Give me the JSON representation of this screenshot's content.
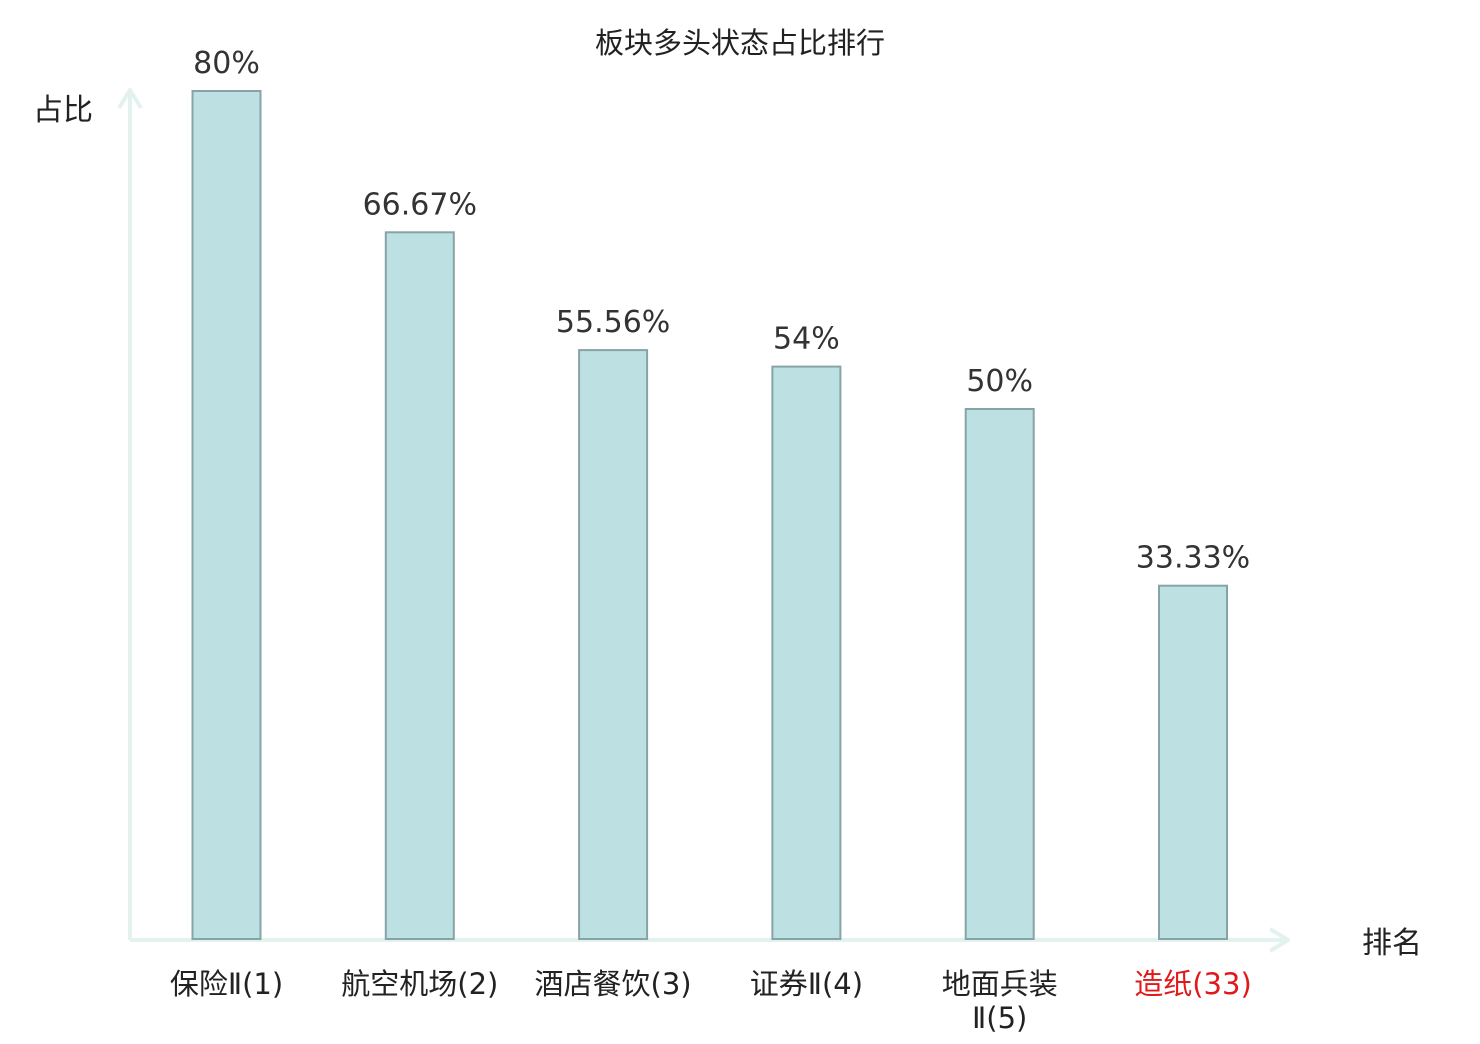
{
  "chart_data": {
    "type": "bar",
    "title": "板块多头状态占比排行",
    "xlabel": "排名",
    "ylabel": "占比",
    "categories": [
      [
        "保险Ⅱ(1)"
      ],
      [
        "航空机场(2)"
      ],
      [
        "酒店餐饮(3)"
      ],
      [
        "证券Ⅱ(4)"
      ],
      [
        "地面兵装",
        "Ⅱ(5)"
      ],
      [
        "造纸(33)"
      ]
    ],
    "values": [
      80,
      66.67,
      55.56,
      54,
      50,
      33.33
    ],
    "value_labels": [
      "80%",
      "66.67%",
      "55.56%",
      "54%",
      "50%",
      "33.33%"
    ],
    "ylim": [
      0,
      80
    ],
    "grid": false,
    "highlight_index": 5
  },
  "colors": {
    "bar_fill": "#bde0e3",
    "bar_stroke": "#86a4a6",
    "axis": "#e3f2ef",
    "text": "#333333",
    "title_text": "#222222",
    "highlight_text": "#e0191b"
  }
}
